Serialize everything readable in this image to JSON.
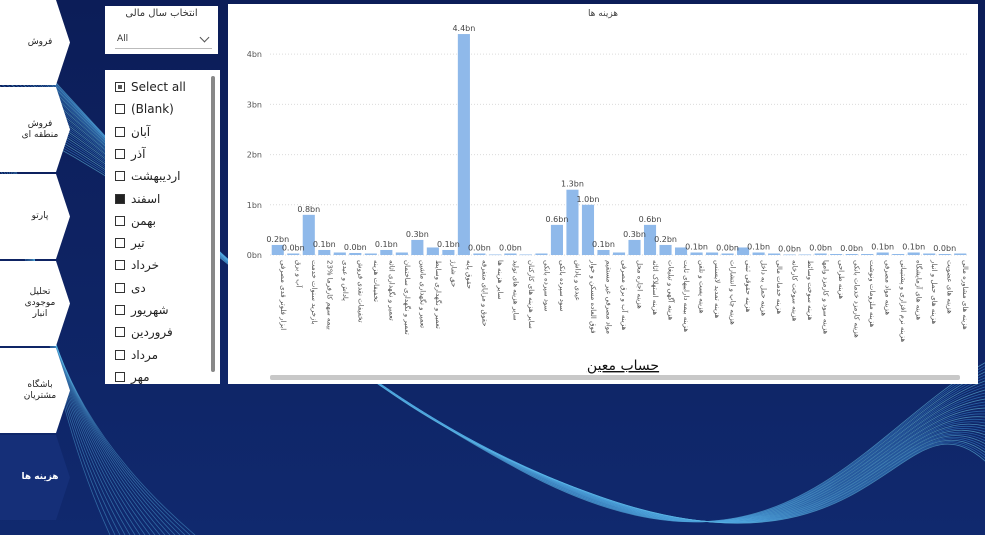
{
  "nav": {
    "items": [
      {
        "label": "فروش",
        "active": false
      },
      {
        "label": "فروش منطقه ای",
        "active": false
      },
      {
        "label": "پارتو",
        "active": false
      },
      {
        "label": "تحلیل موجودی انبار",
        "active": false
      },
      {
        "label": "باشگاه مشتریان",
        "active": false
      },
      {
        "label": "هزینه ها",
        "active": true
      }
    ]
  },
  "fiscal_year": {
    "title": "انتخاب سال مالی",
    "value": "All"
  },
  "month_slicer": {
    "items": [
      {
        "label": "Select all",
        "state": "partial"
      },
      {
        "label": "(Blank)",
        "state": "unchecked"
      },
      {
        "label": "آبان",
        "state": "unchecked"
      },
      {
        "label": "آذر",
        "state": "unchecked"
      },
      {
        "label": "اردیبهشت",
        "state": "unchecked"
      },
      {
        "label": "اسفند",
        "state": "checked"
      },
      {
        "label": "بهمن",
        "state": "unchecked"
      },
      {
        "label": "تیر",
        "state": "unchecked"
      },
      {
        "label": "خرداد",
        "state": "unchecked"
      },
      {
        "label": "دی",
        "state": "unchecked"
      },
      {
        "label": "شهریور",
        "state": "unchecked"
      },
      {
        "label": "فروردین",
        "state": "unchecked"
      },
      {
        "label": "مرداد",
        "state": "unchecked"
      },
      {
        "label": "مهر",
        "state": "unchecked"
      }
    ]
  },
  "chart_data": {
    "type": "bar",
    "title": "هزینه ها",
    "xlabel": "حساب معین",
    "ylabel": "",
    "ylim": [
      0,
      4.6
    ],
    "yticks": [
      0,
      1,
      2,
      3,
      4
    ],
    "ytick_labels": [
      "0bn",
      "1bn",
      "2bn",
      "3bn",
      "4bn"
    ],
    "grid": true,
    "bar_color": "#8fb9ea",
    "categories": [
      "ابزار فلوتر قدی مصرفی",
      "آب و برق",
      "بازخرید سنوات خدمت",
      "23% بیمه سهم کارفرما",
      "پاداش و عیدی",
      "تخفیفات نقدی فروش",
      "تخفیفات هزینه",
      "تعمیر و نگهداری اثاثه",
      "تعمیر و نگهداری ساختمان",
      "تعمیر و نگهداری ماشین",
      "تعمیر و نگهداری وسایط",
      "حق شارژ",
      "حقوق پایه",
      "حقوق و مزایای متفرقه",
      "سایر هزینه ها",
      "سایر هزینه های تولید",
      "سایر هزینه های کارکنان",
      "سود سپرده بانکی",
      "سود سپرده بانکی",
      "عیدی و پاداش",
      "فوق العاده مسکن و خوار",
      "مواد مصرفی غیر مستقیم",
      "هزینه آب و برق مصرفی",
      "هزینه اجاره محل",
      "هزینه استهلاک اثاثه",
      "هزینه آگهی و تبلیغات",
      "هزینه بیمه داراییهای ثابت",
      "هزینه پست و تلفن",
      "هزینه تمدید لایسنس",
      "هزینه چاپ و انتشارات",
      "هزینه حقوقی ثبتی",
      "هزینه حمل به داخل",
      "هزینه خدمات مالی",
      "هزینه سوخت کارخانه",
      "هزینه سوخت وسائط",
      "هزینه سود و کارمزد وامها",
      "هزینه طراحی",
      "هزینه کارمزد خدمات بانکی",
      "هزینه ملزومات ونوشت",
      "هزینه مواد مصرفی",
      "هزینه نرم افزاری و پشتیبانی",
      "هزینه های آزمایشگاه",
      "هزینه های حمل و انبار",
      "هزینه های عضویت",
      "هزینه های مشاوره مالی"
    ],
    "values": [
      0.2,
      0.03,
      0.8,
      0.1,
      0.05,
      0.04,
      0.03,
      0.1,
      0.05,
      0.3,
      0.15,
      0.1,
      4.4,
      0.03,
      0.01,
      0.03,
      0.01,
      0.03,
      0.6,
      1.3,
      1.0,
      0.1,
      0.05,
      0.3,
      0.6,
      0.2,
      0.15,
      0.05,
      0.05,
      0.03,
      0.15,
      0.05,
      0.03,
      0.01,
      0.01,
      0.03,
      0.02,
      0.02,
      0.02,
      0.05,
      0.02,
      0.05,
      0.03,
      0.02,
      0.03
    ],
    "data_labels": [
      {
        "index": 0,
        "text": "0.2bn"
      },
      {
        "index": 1,
        "text": "0.0bn"
      },
      {
        "index": 2,
        "text": "0.8bn"
      },
      {
        "index": 3,
        "text": "0.1bn"
      },
      {
        "index": 5,
        "text": "0.0bn"
      },
      {
        "index": 7,
        "text": "0.1bn"
      },
      {
        "index": 9,
        "text": "0.3bn"
      },
      {
        "index": 11,
        "text": "0.1bn"
      },
      {
        "index": 12,
        "text": "4.4bn"
      },
      {
        "index": 13,
        "text": "0.0bn"
      },
      {
        "index": 15,
        "text": "0.0bn"
      },
      {
        "index": 18,
        "text": "0.6bn"
      },
      {
        "index": 19,
        "text": "1.3bn"
      },
      {
        "index": 20,
        "text": "1.0bn"
      },
      {
        "index": 21,
        "text": "0.1bn"
      },
      {
        "index": 23,
        "text": "0.3bn"
      },
      {
        "index": 24,
        "text": "0.6bn"
      },
      {
        "index": 25,
        "text": "0.2bn"
      },
      {
        "index": 27,
        "text": "0.1bn"
      },
      {
        "index": 29,
        "text": "0.0bn"
      },
      {
        "index": 31,
        "text": "0.1bn"
      },
      {
        "index": 33,
        "text": "0.0bn"
      },
      {
        "index": 35,
        "text": "0.0bn"
      },
      {
        "index": 37,
        "text": "0.0bn"
      },
      {
        "index": 39,
        "text": "0.1bn"
      },
      {
        "index": 41,
        "text": "0.1bn"
      },
      {
        "index": 43,
        "text": "0.0bn"
      }
    ]
  }
}
